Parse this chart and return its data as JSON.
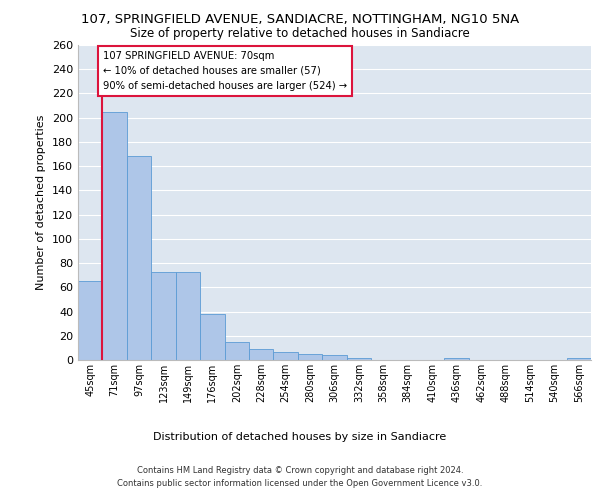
{
  "title1": "107, SPRINGFIELD AVENUE, SANDIACRE, NOTTINGHAM, NG10 5NA",
  "title2": "Size of property relative to detached houses in Sandiacre",
  "xlabel": "Distribution of detached houses by size in Sandiacre",
  "ylabel": "Number of detached properties",
  "bar_labels": [
    "45sqm",
    "71sqm",
    "97sqm",
    "123sqm",
    "149sqm",
    "176sqm",
    "202sqm",
    "228sqm",
    "254sqm",
    "280sqm",
    "306sqm",
    "332sqm",
    "358sqm",
    "384sqm",
    "410sqm",
    "436sqm",
    "462sqm",
    "488sqm",
    "514sqm",
    "540sqm",
    "566sqm"
  ],
  "bar_values": [
    65,
    205,
    168,
    73,
    73,
    38,
    15,
    9,
    7,
    5,
    4,
    2,
    0,
    0,
    0,
    2,
    0,
    0,
    0,
    0,
    2
  ],
  "bar_color": "#aec6e8",
  "bar_edgecolor": "#5b9bd5",
  "background_color": "#dde6f0",
  "grid_color": "#ffffff",
  "annotation_box_text": "107 SPRINGFIELD AVENUE: 70sqm\n← 10% of detached houses are smaller (57)\n90% of semi-detached houses are larger (524) →",
  "red_line_bin_index": 0.5,
  "footnote1": "Contains HM Land Registry data © Crown copyright and database right 2024.",
  "footnote2": "Contains public sector information licensed under the Open Government Licence v3.0.",
  "ylim": [
    0,
    260
  ],
  "yticks": [
    0,
    20,
    40,
    60,
    80,
    100,
    120,
    140,
    160,
    180,
    200,
    220,
    240,
    260
  ]
}
